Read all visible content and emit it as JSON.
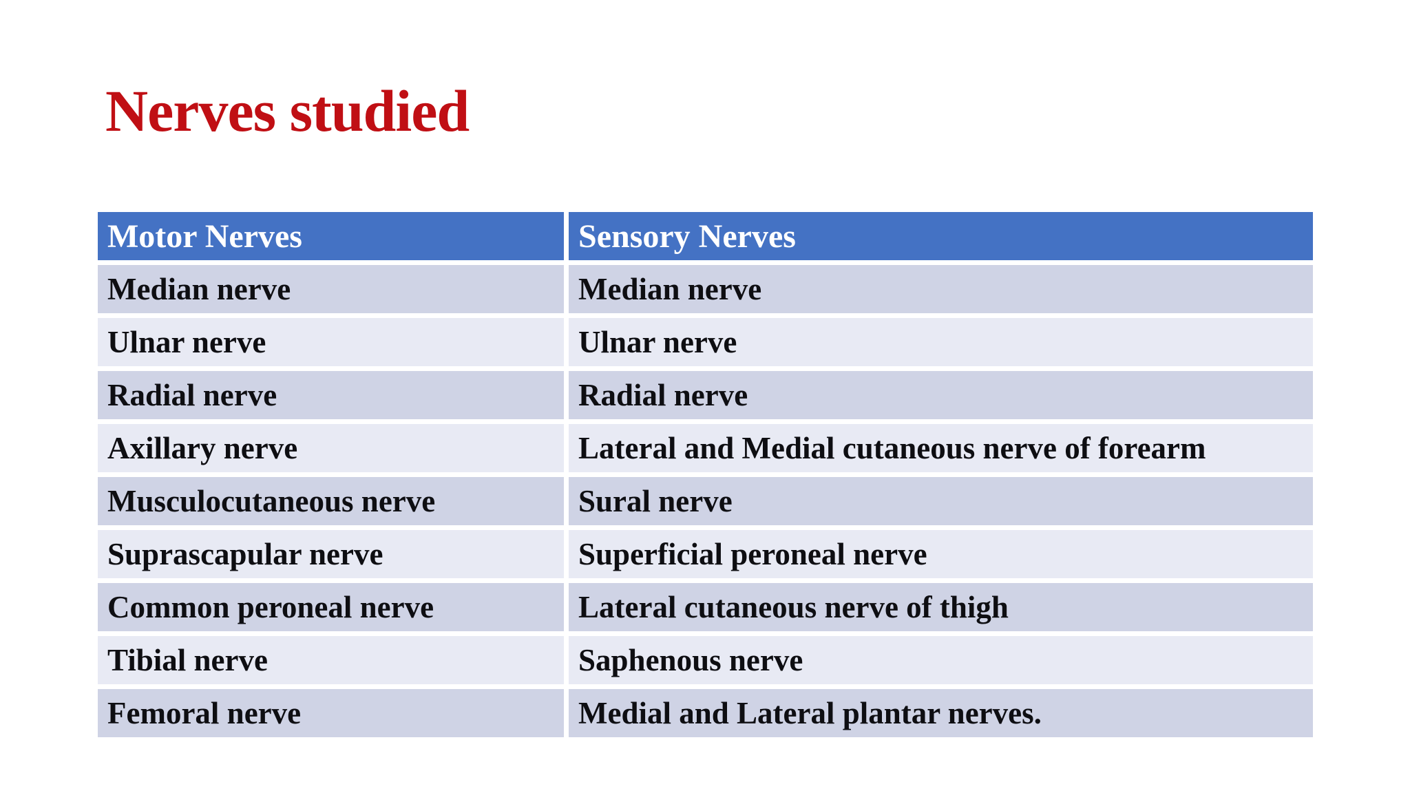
{
  "slide": {
    "title": "Nerves studied",
    "title_color": "#C00F14"
  },
  "table": {
    "columns": [
      "Motor Nerves",
      "Sensory Nerves"
    ],
    "rows": [
      [
        "Median nerve",
        "Median nerve"
      ],
      [
        "Ulnar nerve",
        "Ulnar nerve"
      ],
      [
        "Radial nerve",
        "Radial nerve"
      ],
      [
        "Axillary nerve",
        "Lateral and Medial cutaneous nerve of forearm"
      ],
      [
        "Musculocutaneous nerve",
        "Sural nerve"
      ],
      [
        "Suprascapular nerve",
        "Superficial peroneal nerve"
      ],
      [
        "Common peroneal nerve",
        "Lateral cutaneous nerve of thigh"
      ],
      [
        "Tibial nerve",
        "Saphenous nerve"
      ],
      [
        "Femoral nerve",
        "Medial and Lateral plantar nerves."
      ]
    ],
    "colors": {
      "header_bg": "#4472C4",
      "header_text": "#FFFFFF",
      "band_dark": "#CFD3E5",
      "band_light": "#E8EAF4",
      "cell_text": "#0E0E12"
    }
  }
}
